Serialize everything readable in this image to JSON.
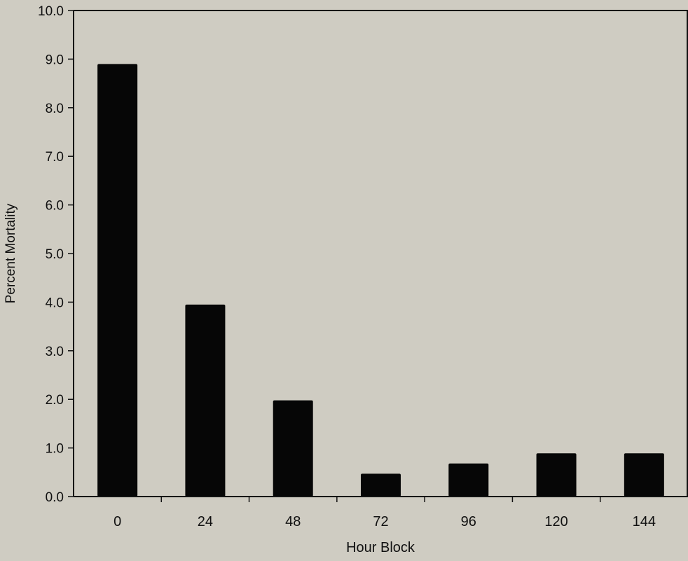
{
  "chart_data": {
    "type": "bar",
    "title": "",
    "xlabel": "Hour Block",
    "ylabel": "Percent Mortality",
    "categories": [
      "0",
      "24",
      "48",
      "72",
      "96",
      "120",
      "144"
    ],
    "values": [
      8.9,
      3.95,
      1.98,
      0.47,
      0.68,
      0.89,
      0.89
    ],
    "ylim": [
      0,
      10
    ],
    "yticks": [
      "0.0",
      "1.0",
      "2.0",
      "3.0",
      "4.0",
      "5.0",
      "6.0",
      "7.0",
      "8.0",
      "9.0",
      "10.0"
    ],
    "grid": false,
    "legend": "none",
    "colors": {
      "bar": "#060606",
      "axis": "#111111",
      "background": "#cfccc2"
    }
  }
}
